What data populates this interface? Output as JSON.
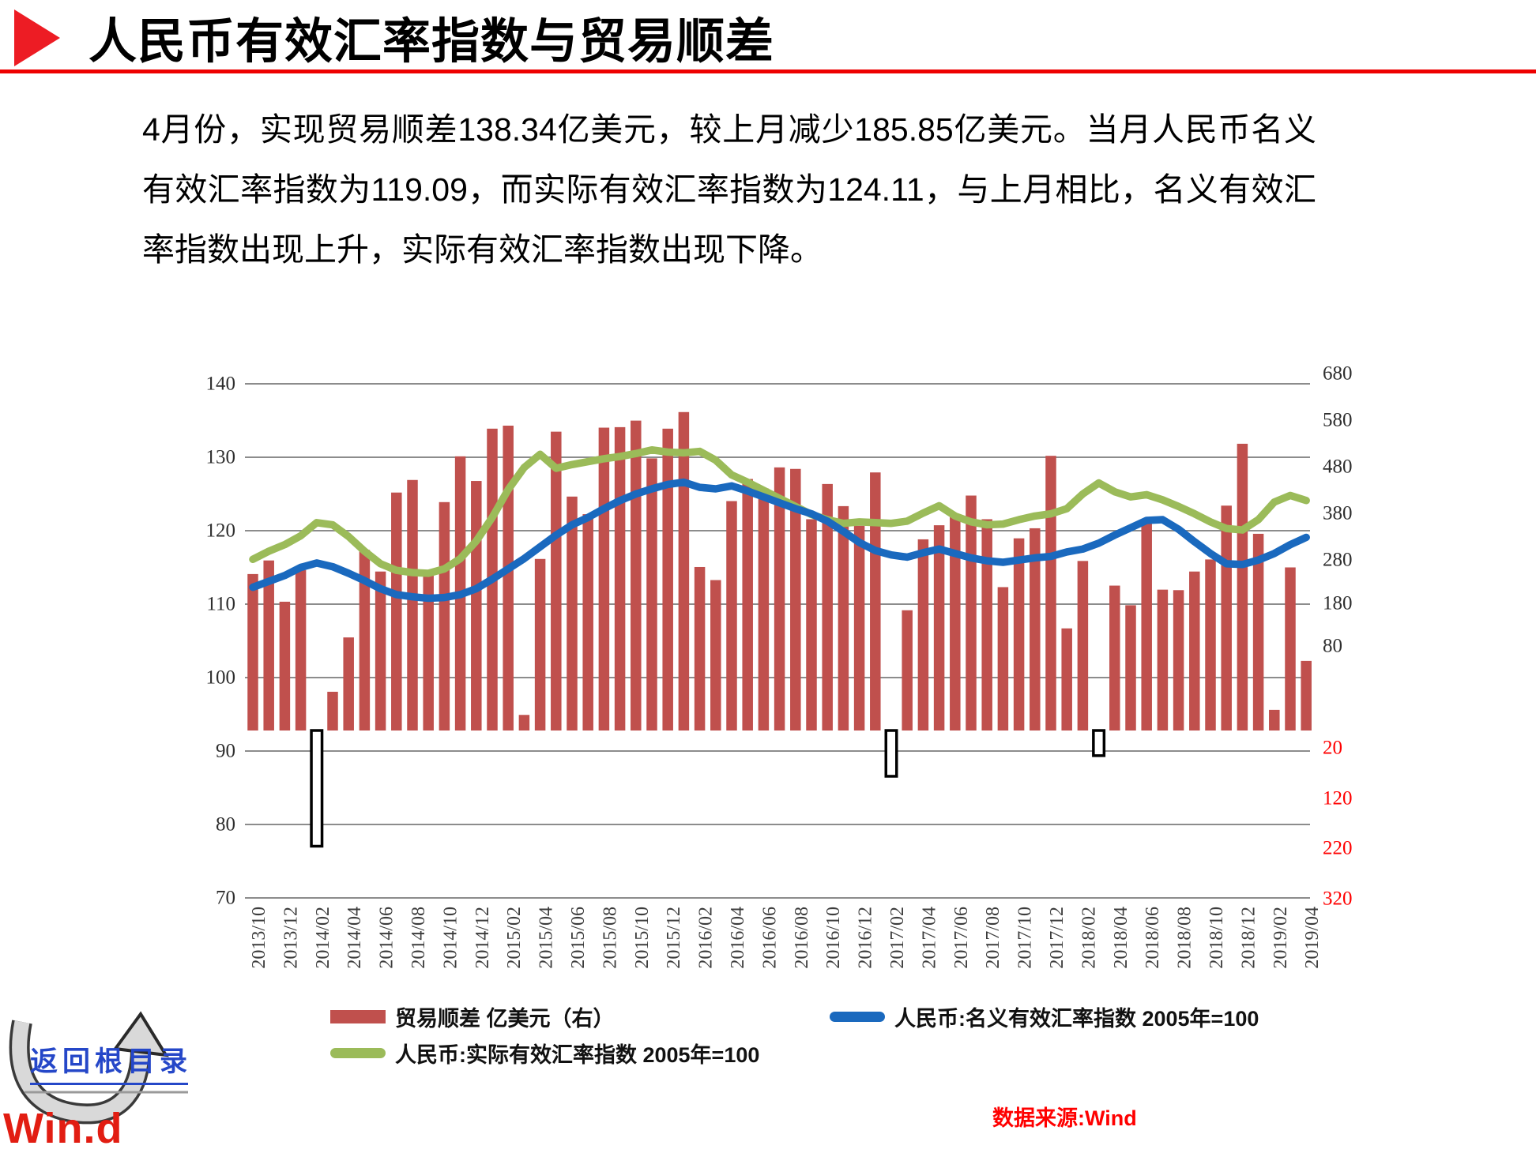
{
  "header": {
    "marker_icon": "triangle-right-icon",
    "title": "人民币有效汇率指数与贸易顺差",
    "rule_color": "#EE0000",
    "marker_color": "#ED1C24"
  },
  "paragraph": {
    "text": "4月份，实现贸易顺差138.34亿美元，较上月减少185.85亿美元。当月人民币名义有效汇率指数为119.09，而实际有效汇率指数为124.11，与上月相比，名义有效汇率指数出现上升，实际有效汇率指数出现下降。"
  },
  "chart_data": {
    "type": "combo",
    "title": "",
    "grid": true,
    "legend_position": "bottom",
    "categories": [
      "2013/10",
      "2013/11",
      "2013/12",
      "2014/01",
      "2014/02",
      "2014/03",
      "2014/04",
      "2014/05",
      "2014/06",
      "2014/07",
      "2014/08",
      "2014/09",
      "2014/10",
      "2014/11",
      "2014/12",
      "2015/01",
      "2015/02",
      "2015/03",
      "2015/04",
      "2015/05",
      "2015/06",
      "2015/07",
      "2015/08",
      "2015/09",
      "2015/10",
      "2015/11",
      "2015/12",
      "2016/01",
      "2016/02",
      "2016/03",
      "2016/04",
      "2016/05",
      "2016/06",
      "2016/07",
      "2016/08",
      "2016/09",
      "2016/10",
      "2016/11",
      "2016/12",
      "2017/01",
      "2017/02",
      "2017/03",
      "2017/04",
      "2017/05",
      "2017/06",
      "2017/07",
      "2017/08",
      "2017/09",
      "2017/10",
      "2017/11",
      "2017/12",
      "2018/01",
      "2018/02",
      "2018/03",
      "2018/04",
      "2018/05",
      "2018/06",
      "2018/07",
      "2018/08",
      "2018/09",
      "2018/10",
      "2018/11",
      "2018/12",
      "2019/01",
      "2019/02",
      "2019/03",
      "2019/04"
    ],
    "x_tick_labels_every": 2,
    "series": [
      {
        "name": "贸易顺差 亿美元（右）",
        "type": "bar",
        "axis": "right",
        "color": "#C0504D",
        "negative_style": "white-fill-black-border",
        "values": [
          311,
          338,
          256,
          319,
          -230,
          77,
          185,
          359,
          316,
          473,
          498,
          310,
          454,
          545,
          496,
          600,
          606,
          31,
          341,
          594,
          465,
          430,
          602,
          603,
          616,
          541,
          600,
          633,
          325,
          299,
          456,
          500,
          481,
          523,
          520,
          420,
          490,
          446,
          407,
          513,
          -91,
          239,
          380,
          408,
          427,
          467,
          420,
          285,
          382,
          402,
          546,
          203,
          337,
          -50,
          288,
          249,
          416,
          280,
          279,
          316,
          340,
          447,
          570,
          391,
          41,
          324.19,
          138.34
        ]
      },
      {
        "name": "人民币:名义有效汇率指数 2005年=100",
        "type": "line",
        "axis": "left",
        "color": "#1A69BE",
        "values": [
          112.3,
          113.1,
          113.9,
          115.0,
          115.6,
          115.1,
          114.2,
          113.2,
          112.1,
          111.3,
          111.0,
          110.8,
          110.9,
          111.3,
          112.1,
          113.4,
          114.8,
          116.2,
          117.8,
          119.4,
          120.8,
          121.8,
          123.0,
          124.1,
          125.0,
          125.7,
          126.3,
          126.6,
          125.9,
          125.7,
          126.1,
          125.4,
          124.6,
          123.8,
          123.0,
          122.3,
          121.3,
          119.9,
          118.4,
          117.3,
          116.7,
          116.4,
          117.0,
          117.5,
          116.9,
          116.3,
          115.9,
          115.7,
          116.0,
          116.3,
          116.5,
          117.1,
          117.5,
          118.3,
          119.4,
          120.4,
          121.4,
          121.5,
          120.2,
          118.5,
          116.9,
          115.5,
          115.4,
          116.0,
          116.9,
          118.1,
          119.09
        ]
      },
      {
        "name": "人民币:实际有效汇率指数 2005年=100",
        "type": "line",
        "axis": "left",
        "color": "#9BBB59",
        "values": [
          116.1,
          117.2,
          118.1,
          119.3,
          121.1,
          120.8,
          119.2,
          117.2,
          115.5,
          114.6,
          114.3,
          114.2,
          114.8,
          116.2,
          118.6,
          121.8,
          125.6,
          128.6,
          130.4,
          128.5,
          129.0,
          129.4,
          129.8,
          130.1,
          130.5,
          131.0,
          130.7,
          130.6,
          130.8,
          129.6,
          127.6,
          126.6,
          125.5,
          124.4,
          123.3,
          122.2,
          121.5,
          121.0,
          121.2,
          121.1,
          121.0,
          121.3,
          122.4,
          123.4,
          122.0,
          121.2,
          120.8,
          120.9,
          121.5,
          122.0,
          122.3,
          123.0,
          125.0,
          126.5,
          125.3,
          124.6,
          124.9,
          124.2,
          123.3,
          122.3,
          121.2,
          120.3,
          120.1,
          121.5,
          123.9,
          124.8,
          124.11
        ]
      }
    ],
    "left_axis": {
      "min": 70,
      "max": 140,
      "ticks": [
        140,
        130,
        120,
        110,
        100,
        90,
        80,
        70
      ]
    },
    "right_axis": {
      "ticks_black": [
        "680",
        "580",
        "480",
        "380",
        "280",
        "180",
        "80"
      ],
      "ticks_red": [
        "20",
        "120",
        "220",
        "320"
      ],
      "red_color": "#FF0000"
    }
  },
  "footer": {
    "logo_back": "返回根目录",
    "logo_brand": "Win.d",
    "source": "数据来源:Wind"
  }
}
